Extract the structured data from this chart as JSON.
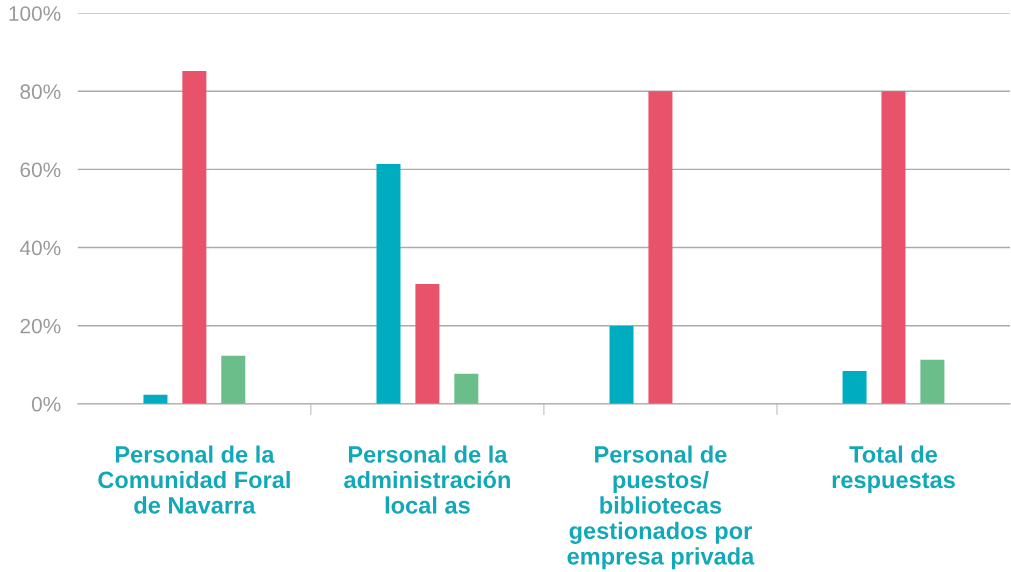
{
  "chart_data": {
    "type": "bar",
    "categories": [
      "Personal de la\nComunidad Foral\nde Navarra",
      "Personal de la\nadministración\nlocal as",
      "Personal de\npuestos/\nbibliotecas\ngestionados por\nempresa privada",
      "Total de\nrespuestas"
    ],
    "series": [
      {
        "color": "#00adc0",
        "values": [
          2.3,
          61.4,
          19.9,
          8.4
        ]
      },
      {
        "color": "#e8526b",
        "values": [
          85.2,
          30.7,
          80,
          80
        ]
      },
      {
        "color": "#6bbd8a",
        "values": [
          12.3,
          7.7,
          0,
          11.3
        ]
      }
    ],
    "ylim": [
      0,
      100
    ],
    "yticks": [
      {
        "value": 0,
        "label": "0%"
      },
      {
        "value": 20,
        "label": "20%"
      },
      {
        "value": 40,
        "label": "40%"
      },
      {
        "value": 60,
        "label": "60%"
      },
      {
        "value": 80,
        "label": "80%"
      },
      {
        "value": 100,
        "label": "100%"
      }
    ],
    "grid": "y"
  }
}
